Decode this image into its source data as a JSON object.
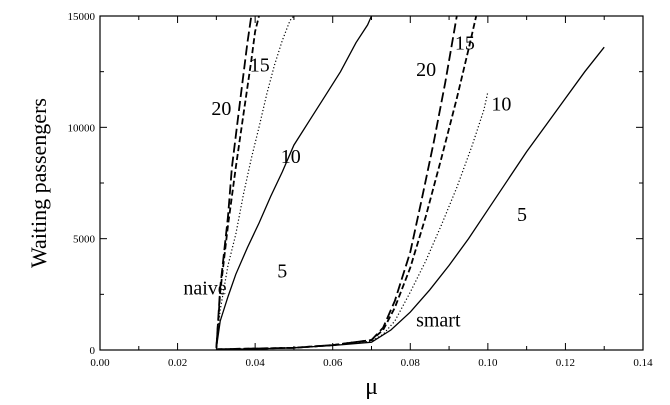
{
  "chart_data": {
    "type": "line",
    "title": "",
    "xlabel": "μ",
    "ylabel": "Waiting passengers",
    "xlim": [
      0.0,
      0.14
    ],
    "ylim": [
      0,
      15000
    ],
    "grid": false,
    "x_ticks": [
      "0.00",
      "0.02",
      "0.04",
      "0.06",
      "0.08",
      "0.10",
      "0.12",
      "0.14"
    ],
    "y_ticks": [
      "0",
      "5000",
      "10000",
      "15000"
    ],
    "annotations": [
      "naive",
      "smart",
      "20",
      "15",
      "10",
      "5",
      "20",
      "15",
      "10",
      "5"
    ],
    "series": [
      {
        "name": "5",
        "group": "naive",
        "style": "solid",
        "x": [
          0.03,
          0.031,
          0.033,
          0.035,
          0.038,
          0.041,
          0.044,
          0.047,
          0.05,
          0.054,
          0.058,
          0.062,
          0.066,
          0.069,
          0.07
        ],
        "y": [
          100,
          1300,
          2400,
          3400,
          4600,
          5700,
          6900,
          8000,
          9200,
          10300,
          11400,
          12500,
          13800,
          14600,
          15000
        ]
      },
      {
        "name": "10",
        "group": "naive",
        "style": "dotted",
        "x": [
          0.03,
          0.031,
          0.033,
          0.035,
          0.037,
          0.039,
          0.041,
          0.043,
          0.045,
          0.047,
          0.049,
          0.05
        ],
        "y": [
          100,
          1800,
          3800,
          5200,
          7000,
          8600,
          10000,
          11500,
          12800,
          13900,
          14800,
          15000
        ]
      },
      {
        "name": "15",
        "group": "naive",
        "style": "dashed",
        "x": [
          0.03,
          0.031,
          0.033,
          0.035,
          0.037,
          0.039,
          0.04,
          0.041
        ],
        "y": [
          100,
          2600,
          5600,
          8200,
          10600,
          13000,
          14300,
          15000
        ]
      },
      {
        "name": "20",
        "group": "naive",
        "style": "long-dashed",
        "x": [
          0.03,
          0.031,
          0.033,
          0.034,
          0.036,
          0.038,
          0.039
        ],
        "y": [
          100,
          2800,
          6000,
          8200,
          11000,
          13800,
          15000
        ]
      },
      {
        "name": "5",
        "group": "smart",
        "style": "solid",
        "x": [
          0.03,
          0.04,
          0.05,
          0.06,
          0.07,
          0.075,
          0.08,
          0.085,
          0.09,
          0.095,
          0.1,
          0.105,
          0.11,
          0.115,
          0.12,
          0.125,
          0.13
        ],
        "y": [
          30,
          50,
          100,
          200,
          350,
          900,
          1700,
          2700,
          3800,
          5000,
          6300,
          7600,
          8900,
          10100,
          11300,
          12500,
          13600
        ]
      },
      {
        "name": "10",
        "group": "smart",
        "style": "dotted",
        "x": [
          0.03,
          0.05,
          0.06,
          0.07,
          0.073,
          0.076,
          0.08,
          0.084,
          0.088,
          0.092,
          0.096,
          0.099,
          0.1
        ],
        "y": [
          30,
          100,
          200,
          400,
          700,
          1300,
          2600,
          4000,
          5600,
          7300,
          9200,
          10800,
          11600
        ]
      },
      {
        "name": "15",
        "group": "smart",
        "style": "dashed",
        "x": [
          0.03,
          0.05,
          0.06,
          0.07,
          0.073,
          0.076,
          0.08,
          0.084,
          0.088,
          0.092,
          0.095,
          0.097
        ],
        "y": [
          30,
          100,
          220,
          450,
          900,
          1900,
          3700,
          6000,
          8600,
          11300,
          13500,
          15000
        ]
      },
      {
        "name": "20",
        "group": "smart",
        "style": "long-dashed",
        "x": [
          0.03,
          0.05,
          0.06,
          0.07,
          0.073,
          0.076,
          0.08,
          0.083,
          0.086,
          0.089,
          0.092
        ],
        "y": [
          30,
          100,
          220,
          450,
          1000,
          2200,
          4400,
          6800,
          9300,
          12000,
          15000
        ]
      }
    ]
  }
}
